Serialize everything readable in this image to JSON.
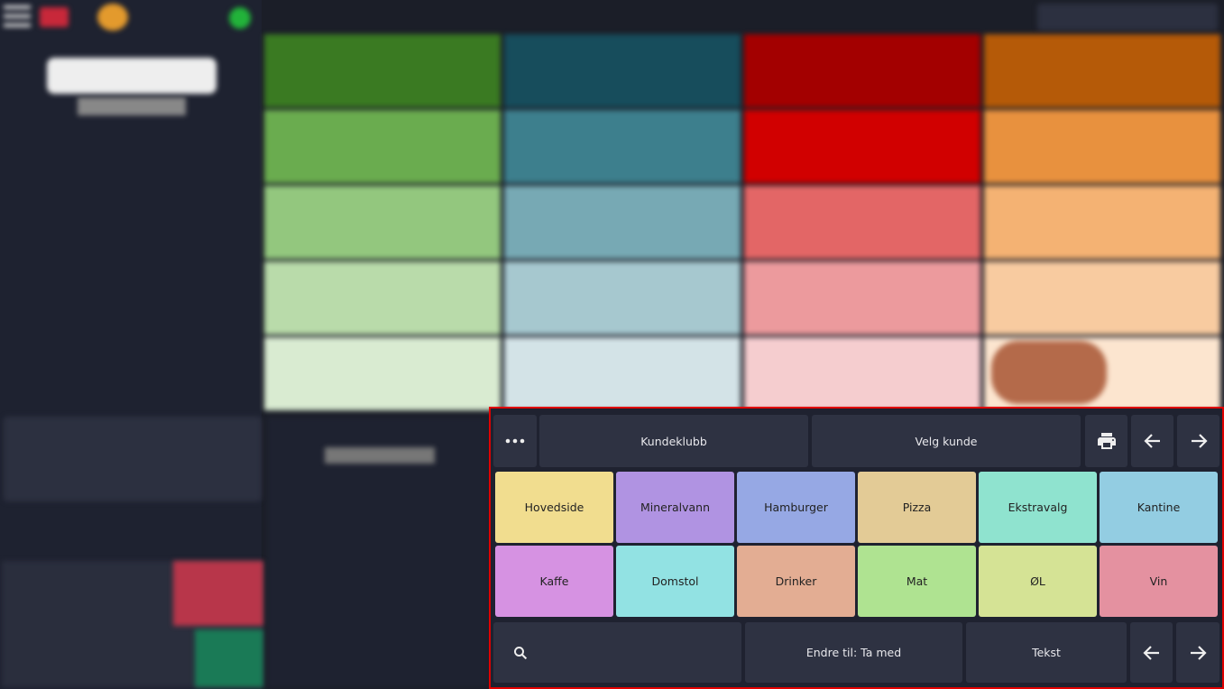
{
  "panel": {
    "top_buttons": [
      "Kundeklubb",
      "Velg kunde"
    ],
    "groups": [
      [
        "Hovedside",
        "Mineralvann",
        "Hamburger",
        "Pizza",
        "Ekstravalg",
        "Kantine"
      ],
      [
        "Kaffe",
        "Domstol",
        "Drinker",
        "Mat",
        "ØL",
        "Vin"
      ]
    ],
    "bottom_buttons": [
      "Endre til: Ta med",
      "Tekst"
    ]
  }
}
